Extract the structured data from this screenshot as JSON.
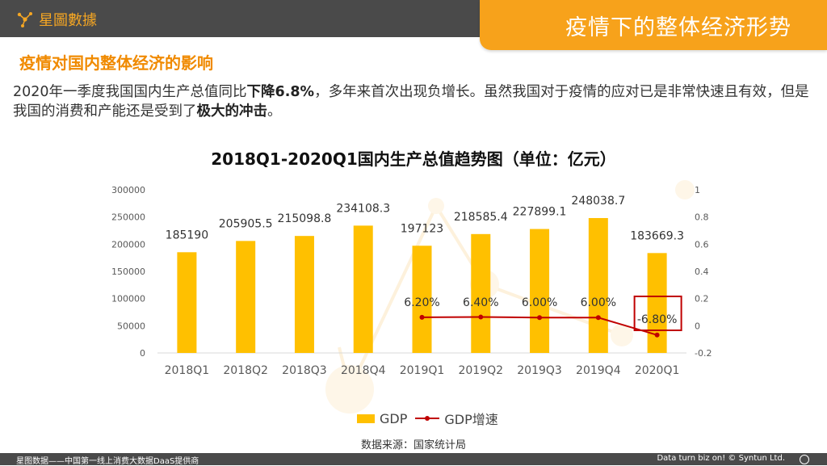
{
  "header": {
    "brand": "星圖數據",
    "page_title": "疫情下的整体经济形势"
  },
  "section_title": "疫情对国内整体经济的影响",
  "paragraph": {
    "p1": "2020年一季度我国国内生产总值同比",
    "b1": "下降6.8%",
    "p2": "，多年来首次出现负增长。虽然我国对于疫情的应对已是非常快速且有效，但是我国的消费和产能还是受到了",
    "b2": "极大的冲击",
    "p3": "。"
  },
  "chart_data": {
    "type": "bar",
    "title": "2018Q1-2020Q1国内生产总值趋势图（单位：亿元）",
    "categories": [
      "2018Q1",
      "2018Q2",
      "2018Q3",
      "2018Q4",
      "2019Q1",
      "2019Q2",
      "2019Q3",
      "2019Q4",
      "2020Q1"
    ],
    "series": [
      {
        "name": "GDP",
        "type": "bar",
        "axis": "left",
        "values": [
          185190,
          205905.5,
          215098.8,
          234108.3,
          197123,
          218585.4,
          227899.1,
          248038.7,
          183669.3
        ],
        "labels": [
          "185190",
          "205905.5",
          "215098.8",
          "234108.3",
          "197123",
          "218585.4",
          "227899.1",
          "248038.7",
          "183669.3"
        ]
      },
      {
        "name": "GDP增速",
        "type": "line",
        "axis": "right",
        "values": [
          null,
          null,
          null,
          null,
          0.062,
          0.064,
          0.06,
          0.06,
          -0.068
        ],
        "labels": [
          null,
          null,
          null,
          null,
          "6.20%",
          "6.40%",
          "6.00%",
          "6.00%",
          "-6.80%"
        ]
      }
    ],
    "y_left": {
      "ticks": [
        "300000",
        "250000",
        "200000",
        "150000",
        "100000",
        "50000",
        "0"
      ],
      "min": 0,
      "max": 300000
    },
    "y_right": {
      "ticks": [
        "1",
        "0.8",
        "0.6",
        "0.4",
        "0.2",
        "0",
        "-0.2"
      ],
      "min": -0.2,
      "max": 1
    },
    "highlight_category": "2020Q1",
    "colors": {
      "bar": "#ffc000",
      "line": "#c00000",
      "axis_text": "#595959"
    }
  },
  "source": "数据来源：国家统计局",
  "footer": {
    "left": "星图数据——中国第一线上消费大数据DaaS提供商",
    "right": "Data turn biz on! © Syntun Ltd."
  }
}
